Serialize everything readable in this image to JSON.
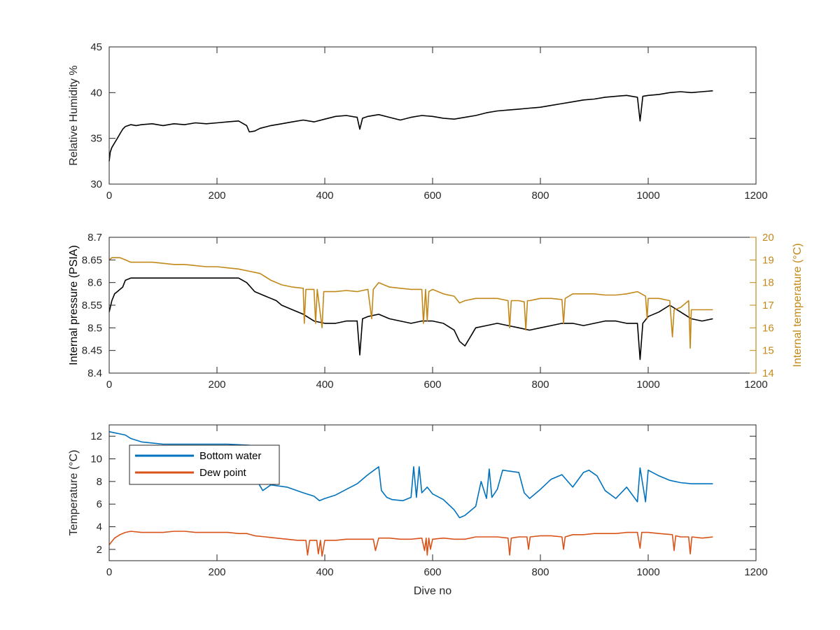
{
  "chart_data": [
    {
      "type": "line",
      "xlabel": "",
      "ylabel": "Relative Humidity %",
      "xlim": [
        0,
        1200
      ],
      "ylim": [
        30,
        45
      ],
      "xticks": [
        "0",
        "200",
        "400",
        "600",
        "800",
        "1000",
        "1200"
      ],
      "yticks": [
        "30",
        "35",
        "40",
        "45"
      ],
      "series": [
        {
          "color": "#000000",
          "x": [
            0,
            2,
            5,
            10,
            15,
            20,
            25,
            30,
            40,
            50,
            60,
            80,
            100,
            120,
            140,
            160,
            180,
            200,
            220,
            240,
            255,
            260,
            270,
            280,
            300,
            320,
            340,
            360,
            380,
            400,
            420,
            440,
            460,
            465,
            470,
            480,
            500,
            520,
            540,
            560,
            580,
            600,
            620,
            640,
            660,
            680,
            700,
            720,
            740,
            760,
            780,
            800,
            820,
            840,
            860,
            880,
            900,
            920,
            940,
            960,
            980,
            985,
            990,
            1000,
            1020,
            1040,
            1060,
            1080,
            1100,
            1120
          ],
          "y": [
            32.5,
            33.5,
            34.0,
            34.5,
            35.0,
            35.5,
            36.0,
            36.3,
            36.5,
            36.4,
            36.5,
            36.6,
            36.4,
            36.6,
            36.5,
            36.7,
            36.6,
            36.7,
            36.8,
            36.9,
            36.4,
            35.7,
            35.8,
            36.1,
            36.4,
            36.6,
            36.8,
            37.0,
            36.8,
            37.1,
            37.4,
            37.5,
            37.3,
            36.0,
            37.2,
            37.4,
            37.6,
            37.3,
            37.0,
            37.3,
            37.5,
            37.4,
            37.2,
            37.1,
            37.3,
            37.5,
            37.8,
            38.0,
            38.1,
            38.2,
            38.3,
            38.4,
            38.6,
            38.8,
            39.0,
            39.2,
            39.3,
            39.5,
            39.6,
            39.7,
            39.5,
            36.9,
            39.6,
            39.7,
            39.8,
            40.0,
            40.1,
            40.0,
            40.1,
            40.2
          ]
        }
      ]
    },
    {
      "type": "line",
      "xlabel": "",
      "ylabel": "Internal pressure (PSIA)",
      "ylabel_right": "Internal temperature (°C)",
      "xlim": [
        0,
        1200
      ],
      "ylim": [
        8.4,
        8.7
      ],
      "ylim_right": [
        14,
        20
      ],
      "xticks": [
        "0",
        "200",
        "400",
        "600",
        "800",
        "1000",
        "1200"
      ],
      "yticks": [
        "8.4",
        "8.45",
        "8.5",
        "8.55",
        "8.6",
        "8.65",
        "8.7"
      ],
      "yticks_right": [
        "14",
        "15",
        "16",
        "17",
        "18",
        "19",
        "20"
      ],
      "series": [
        {
          "color": "#000000",
          "axis": "left",
          "x": [
            0,
            5,
            10,
            15,
            20,
            25,
            30,
            40,
            60,
            80,
            100,
            120,
            140,
            160,
            180,
            200,
            220,
            240,
            255,
            270,
            290,
            310,
            320,
            340,
            360,
            380,
            400,
            420,
            440,
            460,
            465,
            470,
            480,
            500,
            520,
            540,
            560,
            580,
            600,
            620,
            640,
            650,
            660,
            670,
            680,
            700,
            720,
            740,
            760,
            780,
            800,
            820,
            840,
            860,
            880,
            900,
            920,
            940,
            960,
            980,
            985,
            990,
            1000,
            1020,
            1040,
            1060,
            1080,
            1100,
            1120
          ],
          "y": [
            8.535,
            8.56,
            8.575,
            8.58,
            8.585,
            8.59,
            8.605,
            8.61,
            8.61,
            8.61,
            8.61,
            8.61,
            8.61,
            8.61,
            8.61,
            8.61,
            8.61,
            8.61,
            8.6,
            8.58,
            8.57,
            8.56,
            8.55,
            8.54,
            8.53,
            8.515,
            8.51,
            8.51,
            8.515,
            8.515,
            8.44,
            8.52,
            8.525,
            8.53,
            8.52,
            8.515,
            8.51,
            8.515,
            8.515,
            8.51,
            8.495,
            8.47,
            8.46,
            8.48,
            8.5,
            8.505,
            8.51,
            8.505,
            8.5,
            8.495,
            8.5,
            8.505,
            8.51,
            8.51,
            8.505,
            8.51,
            8.515,
            8.515,
            8.51,
            8.51,
            8.43,
            8.51,
            8.525,
            8.535,
            8.55,
            8.535,
            8.52,
            8.515,
            8.52
          ]
        },
        {
          "color": "#C2891A",
          "axis": "right",
          "x": [
            0,
            5,
            10,
            20,
            30,
            40,
            60,
            80,
            100,
            120,
            140,
            160,
            180,
            200,
            220,
            240,
            260,
            280,
            300,
            320,
            340,
            360,
            362,
            365,
            380,
            383,
            386,
            395,
            398,
            400,
            420,
            440,
            460,
            480,
            487,
            490,
            500,
            520,
            540,
            560,
            580,
            583,
            587,
            590,
            593,
            600,
            620,
            640,
            650,
            660,
            680,
            700,
            720,
            740,
            743,
            746,
            760,
            770,
            773,
            776,
            780,
            800,
            820,
            840,
            843,
            846,
            860,
            880,
            900,
            920,
            940,
            960,
            980,
            995,
            998,
            1000,
            1020,
            1040,
            1045,
            1048,
            1060,
            1075,
            1078,
            1080,
            1100,
            1120
          ],
          "y": [
            19.0,
            19.1,
            19.1,
            19.1,
            19.0,
            18.9,
            18.9,
            18.9,
            18.85,
            18.8,
            18.8,
            18.75,
            18.7,
            18.7,
            18.65,
            18.6,
            18.5,
            18.4,
            18.1,
            17.9,
            17.8,
            17.75,
            16.2,
            17.7,
            17.7,
            16.2,
            17.7,
            16.0,
            17.6,
            17.6,
            17.6,
            17.65,
            17.6,
            17.7,
            16.4,
            17.7,
            18.0,
            17.8,
            17.75,
            17.7,
            17.7,
            16.2,
            17.7,
            16.3,
            17.6,
            17.7,
            17.5,
            17.4,
            17.1,
            17.2,
            17.3,
            17.3,
            17.3,
            17.2,
            16.0,
            17.2,
            17.2,
            17.15,
            15.9,
            17.2,
            17.2,
            17.3,
            17.3,
            17.25,
            16.2,
            17.3,
            17.5,
            17.5,
            17.5,
            17.45,
            17.45,
            17.5,
            17.6,
            17.4,
            16.4,
            17.3,
            17.3,
            17.2,
            15.6,
            16.8,
            16.9,
            17.2,
            15.1,
            16.8,
            16.8,
            16.8
          ]
        }
      ]
    },
    {
      "type": "line",
      "xlabel": "Dive no",
      "ylabel": "Temperature (°C)",
      "xlim": [
        0,
        1200
      ],
      "ylim": [
        1,
        13
      ],
      "xticks": [
        "0",
        "200",
        "400",
        "600",
        "800",
        "1000",
        "1200"
      ],
      "yticks": [
        "2",
        "4",
        "6",
        "8",
        "10",
        "12"
      ],
      "legend_position": "top-left",
      "series": [
        {
          "name": "Bottom water",
          "color": "#0072BD",
          "x": [
            0,
            10,
            20,
            30,
            40,
            60,
            80,
            100,
            140,
            180,
            220,
            260,
            270,
            275,
            285,
            300,
            330,
            360,
            380,
            390,
            400,
            420,
            440,
            460,
            480,
            500,
            505,
            515,
            525,
            545,
            560,
            565,
            570,
            575,
            580,
            590,
            600,
            620,
            640,
            650,
            660,
            680,
            690,
            700,
            705,
            710,
            720,
            730,
            760,
            770,
            780,
            800,
            820,
            840,
            860,
            880,
            890,
            905,
            920,
            940,
            960,
            980,
            985,
            995,
            1000,
            1020,
            1040,
            1060,
            1080,
            1100,
            1120
          ],
          "y": [
            12.4,
            12.3,
            12.2,
            12.1,
            11.8,
            11.5,
            11.4,
            11.3,
            11.3,
            11.3,
            11.3,
            11.2,
            10.5,
            8.0,
            7.2,
            7.7,
            7.5,
            7.0,
            6.7,
            6.3,
            6.5,
            6.8,
            7.3,
            7.8,
            8.6,
            9.3,
            7.2,
            6.6,
            6.4,
            6.3,
            6.6,
            9.3,
            6.6,
            9.3,
            7.0,
            7.5,
            6.9,
            6.4,
            5.5,
            4.8,
            5.0,
            5.8,
            8.0,
            6.5,
            9.1,
            6.6,
            7.3,
            9.0,
            8.8,
            7.0,
            6.5,
            7.3,
            8.2,
            8.6,
            7.5,
            8.8,
            9.0,
            8.5,
            7.2,
            6.5,
            7.5,
            6.2,
            9.2,
            6.2,
            9.0,
            8.5,
            8.1,
            7.9,
            7.8,
            7.8,
            7.8
          ]
        },
        {
          "name": "Dew point",
          "color": "#D95319",
          "x": [
            0,
            5,
            10,
            20,
            30,
            40,
            60,
            80,
            100,
            120,
            140,
            160,
            180,
            200,
            220,
            240,
            255,
            270,
            290,
            310,
            330,
            350,
            365,
            368,
            372,
            385,
            388,
            392,
            395,
            400,
            420,
            440,
            460,
            480,
            490,
            494,
            500,
            520,
            540,
            560,
            580,
            585,
            588,
            590,
            593,
            596,
            600,
            620,
            640,
            660,
            680,
            700,
            720,
            740,
            743,
            746,
            760,
            775,
            778,
            781,
            800,
            820,
            840,
            843,
            846,
            860,
            880,
            900,
            920,
            940,
            960,
            980,
            985,
            988,
            1000,
            1020,
            1045,
            1048,
            1051,
            1060,
            1075,
            1078,
            1081,
            1100,
            1120
          ],
          "y": [
            2.4,
            2.7,
            3.0,
            3.3,
            3.5,
            3.6,
            3.5,
            3.5,
            3.5,
            3.6,
            3.6,
            3.5,
            3.5,
            3.5,
            3.5,
            3.4,
            3.4,
            3.2,
            3.1,
            3.0,
            2.9,
            2.8,
            2.8,
            1.5,
            2.8,
            2.8,
            1.6,
            2.8,
            1.4,
            2.8,
            2.8,
            2.9,
            2.9,
            2.9,
            2.9,
            1.9,
            3.0,
            3.0,
            2.9,
            2.9,
            3.0,
            1.9,
            3.0,
            1.5,
            3.0,
            2.0,
            2.9,
            3.0,
            2.9,
            2.9,
            3.1,
            3.1,
            3.1,
            3.0,
            1.5,
            3.0,
            3.1,
            3.1,
            2.0,
            3.1,
            3.2,
            3.2,
            3.1,
            2.0,
            3.1,
            3.3,
            3.3,
            3.4,
            3.4,
            3.4,
            3.5,
            3.5,
            2.1,
            3.5,
            3.5,
            3.4,
            3.3,
            1.9,
            3.2,
            3.1,
            3.1,
            1.6,
            3.1,
            3.0,
            3.1
          ]
        }
      ]
    }
  ]
}
